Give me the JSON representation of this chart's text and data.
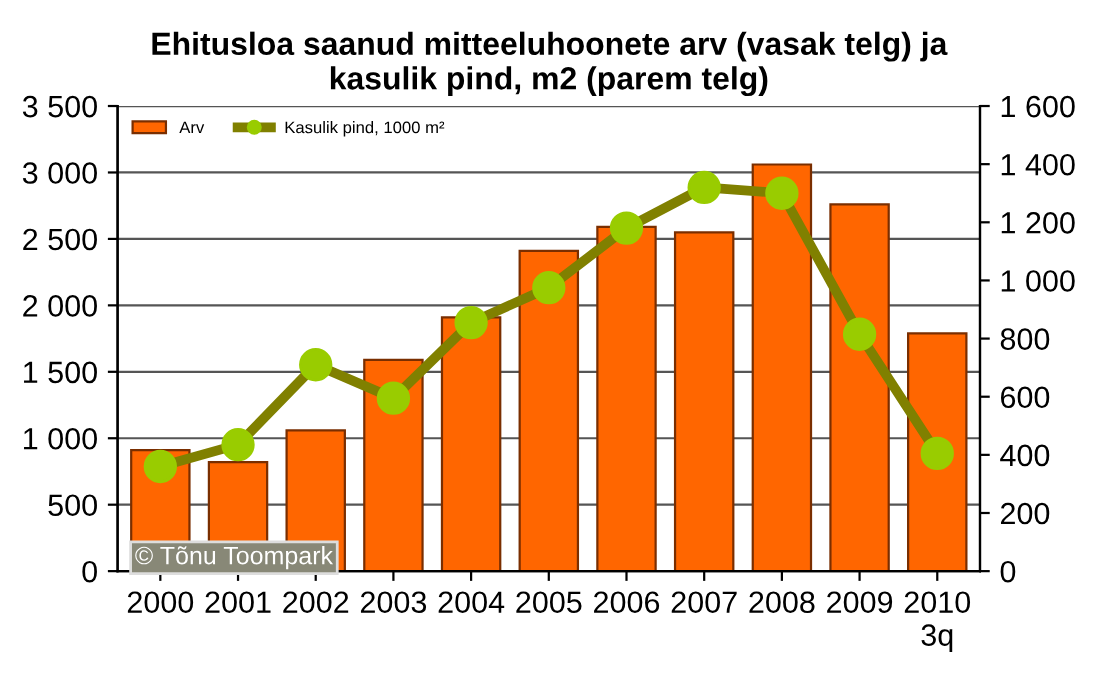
{
  "chart_data": {
    "type": "bar",
    "title": "Ehitusloa saanud mitteeluhoonete arv (vasak telg) ja\nkasulik pind, m2 (parem telg)",
    "categories": [
      "2000",
      "2001",
      "2002",
      "2003",
      "2004",
      "2005",
      "2006",
      "2007",
      "2008",
      "2009",
      "2010\n3q"
    ],
    "series": [
      {
        "name": "Arv",
        "color": "#ff6600",
        "values": [
          910,
          820,
          1060,
          1590,
          1910,
          2410,
          2590,
          2550,
          3060,
          2760,
          1790
        ]
      },
      {
        "name": "Kasulik pind, 1000 m²",
        "type": "line",
        "axis": "y2",
        "color": "#808000",
        "marker": "circle",
        "values": [
          360,
          435,
          710,
          595,
          855,
          975,
          1180,
          1320,
          1300,
          815,
          405
        ]
      }
    ],
    "ylim": [
      0,
      3500
    ],
    "yticks": [
      {
        "value": 0,
        "label": "0"
      },
      {
        "value": 500,
        "label": "500"
      },
      {
        "value": 1000,
        "label": "1 000"
      },
      {
        "value": 1500,
        "label": "1 500"
      },
      {
        "value": 2000,
        "label": "2 000"
      },
      {
        "value": 2500,
        "label": "2 500"
      },
      {
        "value": 3000,
        "label": "3 000"
      },
      {
        "value": 3500,
        "label": "3 500"
      }
    ],
    "y2lim": [
      0,
      1600
    ],
    "y2ticks": [
      {
        "value": 0,
        "label": "0"
      },
      {
        "value": 200,
        "label": "200"
      },
      {
        "value": 400,
        "label": "400"
      },
      {
        "value": 600,
        "label": "600"
      },
      {
        "value": 800,
        "label": "800"
      },
      {
        "value": 1000,
        "label": "1 000"
      },
      {
        "value": 1200,
        "label": "1 200"
      },
      {
        "value": 1400,
        "label": "1 400"
      },
      {
        "value": 1600,
        "label": "1 600"
      }
    ],
    "grid": "y",
    "legend": "top left",
    "line_style": "solid",
    "annotations": [
      "© Tõnu Toompark"
    ]
  }
}
